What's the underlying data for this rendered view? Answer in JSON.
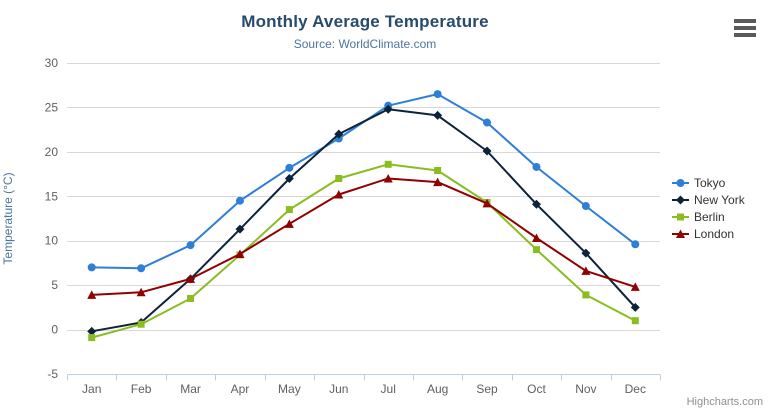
{
  "chart": {
    "title": "Monthly Average Temperature",
    "subtitle": "Source: WorldClimate.com",
    "credits": "Highcharts.com",
    "menu_icon": "hamburger-icon"
  },
  "colors": {
    "title": "#274b6d",
    "subtitle": "#4d759e",
    "axis_title": "#4d759e",
    "axis_label": "#606060",
    "grid": "#d8d8d8",
    "axis_line": "#c0d0e0",
    "legend_text": "#333333",
    "credits_text": "#909090"
  },
  "chart_data": {
    "type": "line",
    "title": "Monthly Average Temperature",
    "subtitle": "Source: WorldClimate.com",
    "categories": [
      "Jan",
      "Feb",
      "Mar",
      "Apr",
      "May",
      "Jun",
      "Jul",
      "Aug",
      "Sep",
      "Oct",
      "Nov",
      "Dec"
    ],
    "series": [
      {
        "name": "Tokyo",
        "color": "#2f7ed8",
        "marker": "circle",
        "values": [
          7.0,
          6.9,
          9.5,
          14.5,
          18.2,
          21.5,
          25.2,
          26.5,
          23.3,
          18.3,
          13.9,
          9.6
        ]
      },
      {
        "name": "New York",
        "color": "#0d233a",
        "marker": "diamond",
        "values": [
          -0.2,
          0.8,
          5.7,
          11.3,
          17.0,
          22.0,
          24.8,
          24.1,
          20.1,
          14.1,
          8.6,
          2.5
        ]
      },
      {
        "name": "Berlin",
        "color": "#8bbc21",
        "marker": "square",
        "values": [
          -0.9,
          0.6,
          3.5,
          8.4,
          13.5,
          17.0,
          18.6,
          17.9,
          14.3,
          9.0,
          3.9,
          1.0
        ]
      },
      {
        "name": "London",
        "color": "#910000",
        "marker": "triangle",
        "values": [
          3.9,
          4.2,
          5.7,
          8.5,
          11.9,
          15.2,
          17.0,
          16.6,
          14.2,
          10.3,
          6.6,
          4.8
        ]
      }
    ],
    "xlabel": "",
    "ylabel": "Temperature (°C)",
    "ylim": [
      -5,
      30
    ],
    "ytick_step": 5,
    "grid": true,
    "legend_position": "right"
  }
}
